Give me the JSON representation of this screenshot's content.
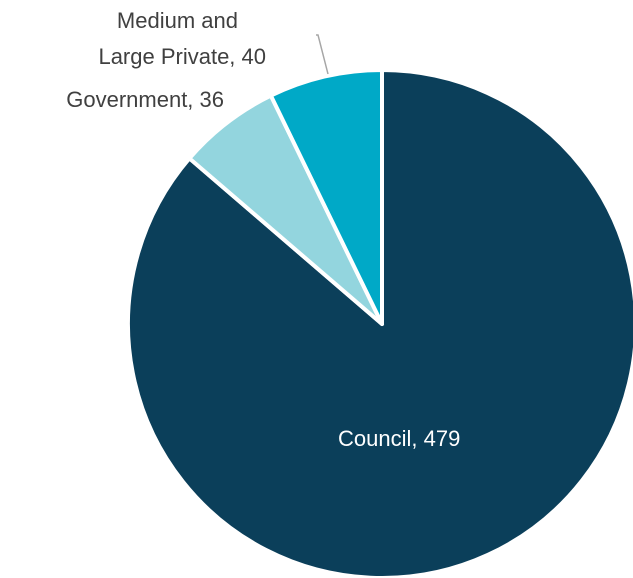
{
  "chart_data": {
    "type": "pie",
    "title": "",
    "slices": [
      {
        "label": "Council",
        "value": 479,
        "color": "#0b3f5a",
        "text": "Council, 479"
      },
      {
        "label": "Government",
        "value": 36,
        "color": "#93d5de",
        "text": "Government, 36"
      },
      {
        "label": "Medium and Large Private",
        "value": 40,
        "color": "#00a9c7",
        "text": "Medium and Large Private, 40"
      }
    ],
    "start_angle_deg": 0,
    "direction": "clockwise",
    "legend": "none",
    "data_labels": {
      "council": "Council, 479",
      "government": "Government, 36",
      "private_line1": "Medium and",
      "private_line2": "Large Private, 40"
    }
  }
}
